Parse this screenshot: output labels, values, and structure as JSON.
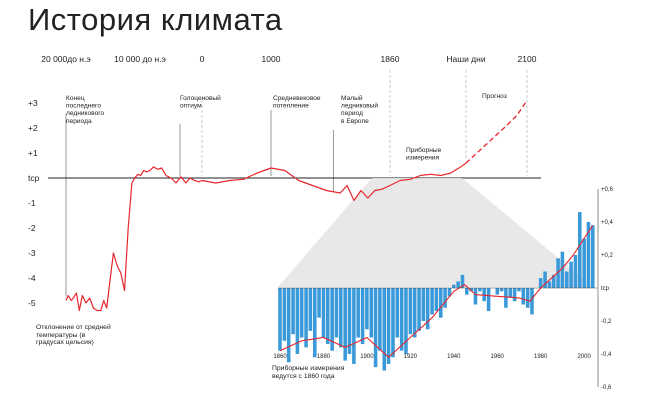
{
  "title": "История климата",
  "top_axis": [
    "20 000до н.э",
    "10 000 до н.э",
    "0",
    "1000",
    "1860",
    "Наши дни",
    "2100"
  ],
  "y_axis": {
    "labels": [
      "+3",
      "+2",
      "+1",
      "tср",
      "-1",
      "-2",
      "-3",
      "-4",
      "-5"
    ],
    "values": [
      3,
      2,
      1,
      0,
      -1,
      -2,
      -3,
      -4,
      -5
    ]
  },
  "annotations": [
    "Конец последнего ледникового периода",
    "Голоценовый оптиум",
    "Средневековое потепление",
    "Малый ледниковый период в Европе",
    "Приборные измерения",
    "Прогноз"
  ],
  "y_caption": "Отклонение от средней температуры (в градусах цельсия)",
  "inset_caption": "Приборные измерения ведутся с 1860 года",
  "colors": {
    "curve": "#e8262b",
    "bars": "#3a9ad9",
    "axis": "#222222",
    "dash": "#bdbdbd"
  },
  "chart_data": [
    {
      "type": "line",
      "title": "История климата",
      "xlabel": "",
      "ylabel": "Отклонение от средней температуры (в градусах цельсия)",
      "ylim": [
        -5.5,
        3.5
      ],
      "grid": false,
      "series": [
        {
          "x": [
            -20000,
            -19700,
            -19300,
            -19000,
            -18600,
            -18200,
            -17800,
            -17300,
            -16800,
            -16300,
            -15800,
            -15300,
            -14900,
            -14500,
            -14100,
            -13600,
            -13100,
            -12600,
            -12100,
            -11600,
            -11100,
            -10700,
            -10300,
            -9900,
            -9400,
            -8900,
            -8400,
            -7800,
            -7200,
            -6500,
            -5800,
            -5000,
            -4200,
            -3400,
            -2600,
            -1900,
            -1200,
            -500,
            0,
            200,
            400,
            600,
            800,
            1000,
            1100,
            1200,
            1300,
            1400,
            1500,
            1550,
            1600,
            1650,
            1700,
            1750,
            1800,
            1860,
            1880,
            1900,
            1920,
            1940,
            1960,
            1980,
            2000,
            2010
          ],
          "y": [
            -4.9,
            -4.7,
            -4.9,
            -4.8,
            -4.6,
            -5.3,
            -4.7,
            -5.0,
            -4.8,
            -5.2,
            -5.3,
            -5.3,
            -4.9,
            -5.2,
            -4.2,
            -3.0,
            -3.5,
            -3.8,
            -4.5,
            -2.0,
            -0.2,
            0.0,
            0.15,
            0.1,
            0.3,
            0.25,
            0.3,
            0.45,
            0.35,
            0.4,
            0.1,
            0.0,
            -0.2,
            0.05,
            -0.2,
            0.0,
            -0.1,
            -0.15,
            -0.1,
            -0.2,
            -0.1,
            -0.05,
            0.2,
            0.4,
            0.3,
            -0.1,
            -0.3,
            -0.5,
            -0.6,
            -0.3,
            -0.9,
            -0.5,
            -0.8,
            -0.5,
            -0.45,
            -0.3,
            -0.1,
            -0.05,
            0.1,
            0.15,
            0.1,
            0.2,
            0.45,
            0.6
          ]
        },
        {
          "name": "Прогноз",
          "x": [
            2010,
            2030,
            2050,
            2070,
            2085,
            2100
          ],
          "y": [
            0.6,
            1.1,
            1.6,
            2.1,
            2.5,
            3.1
          ]
        }
      ]
    },
    {
      "type": "bar",
      "xlabel": "",
      "ylabel": "",
      "xlim": [
        1860,
        2005
      ],
      "ylim": [
        -0.6,
        0.6
      ],
      "x_ticks": [
        1860,
        1880,
        1900,
        1920,
        1940,
        1960,
        1980,
        2000
      ],
      "y_tick_labels": [
        "+0,6",
        "+0,4",
        "+0,2",
        "tср",
        "-0,2",
        "-0,4",
        "-0,6"
      ],
      "y_tick_values": [
        0.6,
        0.4,
        0.2,
        0,
        -0.2,
        -0.4,
        -0.6
      ],
      "years": [
        1860,
        1862,
        1864,
        1866,
        1868,
        1870,
        1872,
        1874,
        1876,
        1878,
        1880,
        1882,
        1884,
        1886,
        1888,
        1890,
        1892,
        1894,
        1896,
        1898,
        1900,
        1902,
        1904,
        1906,
        1908,
        1910,
        1912,
        1914,
        1916,
        1918,
        1920,
        1922,
        1924,
        1926,
        1928,
        1930,
        1932,
        1934,
        1936,
        1938,
        1940,
        1942,
        1944,
        1946,
        1948,
        1950,
        1952,
        1954,
        1956,
        1958,
        1960,
        1962,
        1964,
        1966,
        1968,
        1970,
        1972,
        1974,
        1976,
        1978,
        1980,
        1982,
        1984,
        1986,
        1988,
        1990,
        1992,
        1994,
        1996,
        1998,
        2000,
        2002,
        2004
      ],
      "values": [
        -0.38,
        -0.32,
        -0.45,
        -0.28,
        -0.4,
        -0.3,
        -0.36,
        -0.26,
        -0.42,
        -0.18,
        -0.3,
        -0.34,
        -0.38,
        -0.3,
        -0.36,
        -0.44,
        -0.4,
        -0.46,
        -0.3,
        -0.34,
        -0.25,
        -0.3,
        -0.48,
        -0.38,
        -0.5,
        -0.46,
        -0.42,
        -0.3,
        -0.38,
        -0.4,
        -0.28,
        -0.3,
        -0.26,
        -0.2,
        -0.25,
        -0.16,
        -0.14,
        -0.18,
        -0.12,
        -0.05,
        0.02,
        0.04,
        0.08,
        -0.04,
        -0.02,
        -0.1,
        -0.02,
        -0.08,
        -0.14,
        0.0,
        -0.04,
        -0.02,
        -0.12,
        -0.06,
        -0.08,
        -0.02,
        -0.1,
        -0.12,
        -0.16,
        0.0,
        0.06,
        0.1,
        0.04,
        0.08,
        0.18,
        0.22,
        0.1,
        0.16,
        0.2,
        0.46,
        0.3,
        0.4,
        0.38
      ],
      "series": [
        {
          "x": [
            1860,
            1870,
            1880,
            1890,
            1900,
            1910,
            1920,
            1930,
            1940,
            1945,
            1950,
            1960,
            1970,
            1975,
            1980,
            1990,
            1995,
            2000,
            2004
          ],
          "y": [
            -0.38,
            -0.32,
            -0.3,
            -0.36,
            -0.3,
            -0.42,
            -0.3,
            -0.18,
            -0.02,
            0.02,
            -0.04,
            -0.05,
            -0.06,
            -0.08,
            0.0,
            0.12,
            0.2,
            0.3,
            0.38
          ]
        }
      ]
    }
  ]
}
